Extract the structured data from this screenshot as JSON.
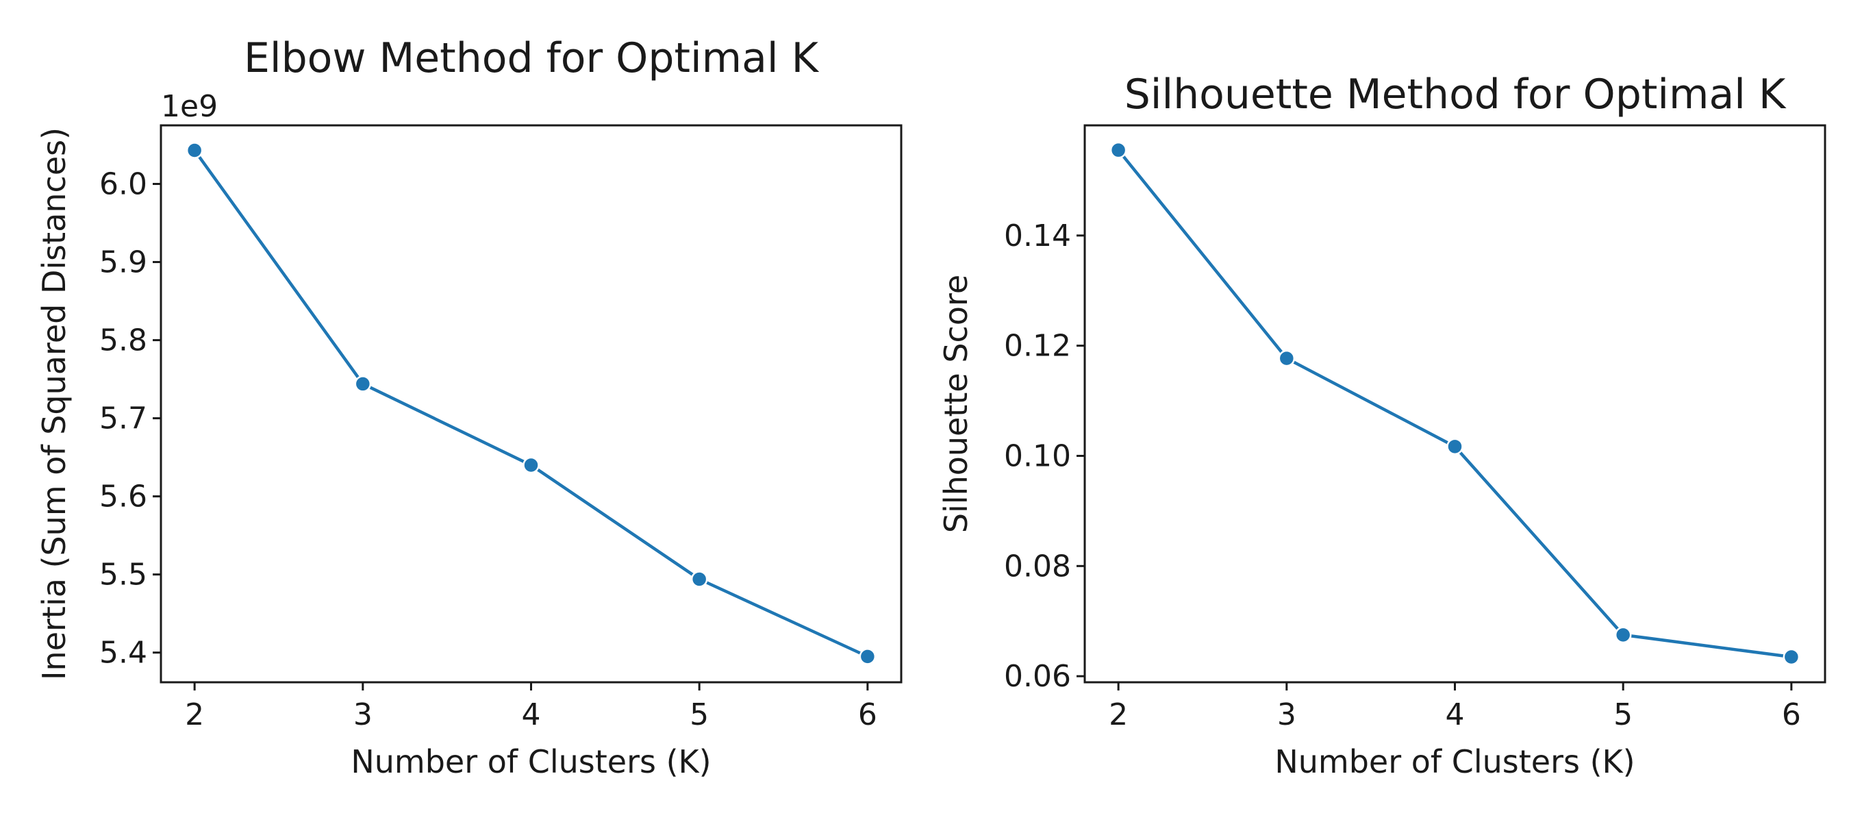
{
  "chart_data": [
    {
      "type": "line",
      "title": "Elbow Method for Optimal K",
      "xlabel": "Number of Clusters (K)",
      "ylabel": "Inertia (Sum of Squared Distances)",
      "y_offset_label": "1e9",
      "x": [
        2,
        3,
        4,
        5,
        6
      ],
      "x_tick_labels": [
        "2",
        "3",
        "4",
        "5",
        "6"
      ],
      "y_ticks": [
        5.4,
        5.5,
        5.6,
        5.7,
        5.8,
        5.9,
        6.0
      ],
      "y_tick_labels": [
        "5.4",
        "5.5",
        "5.6",
        "5.7",
        "5.8",
        "5.9",
        "6.0"
      ],
      "series": [
        {
          "values": [
            6.043,
            5.744,
            5.64,
            5.494,
            5.395
          ],
          "color": "#1f77b4"
        }
      ],
      "xlim": [
        1.8,
        6.2
      ],
      "ylim": [
        5.362,
        6.075
      ],
      "y_unit_multiplier": 1000000000,
      "grid": false,
      "legend": "none"
    },
    {
      "type": "line",
      "title": "Silhouette Method for Optimal K",
      "xlabel": "Number of Clusters (K)",
      "ylabel": "Silhouette Score",
      "x": [
        2,
        3,
        4,
        5,
        6
      ],
      "x_tick_labels": [
        "2",
        "3",
        "4",
        "5",
        "6"
      ],
      "y_ticks": [
        0.06,
        0.08,
        0.1,
        0.12,
        0.14
      ],
      "y_tick_labels": [
        "0.06",
        "0.08",
        "0.10",
        "0.12",
        "0.14"
      ],
      "series": [
        {
          "values": [
            0.1555,
            0.1177,
            0.1017,
            0.0675,
            0.0635
          ],
          "color": "#1f77b4"
        }
      ],
      "xlim": [
        1.8,
        6.2
      ],
      "ylim": [
        0.0589,
        0.16
      ],
      "grid": false,
      "legend": "none"
    }
  ]
}
